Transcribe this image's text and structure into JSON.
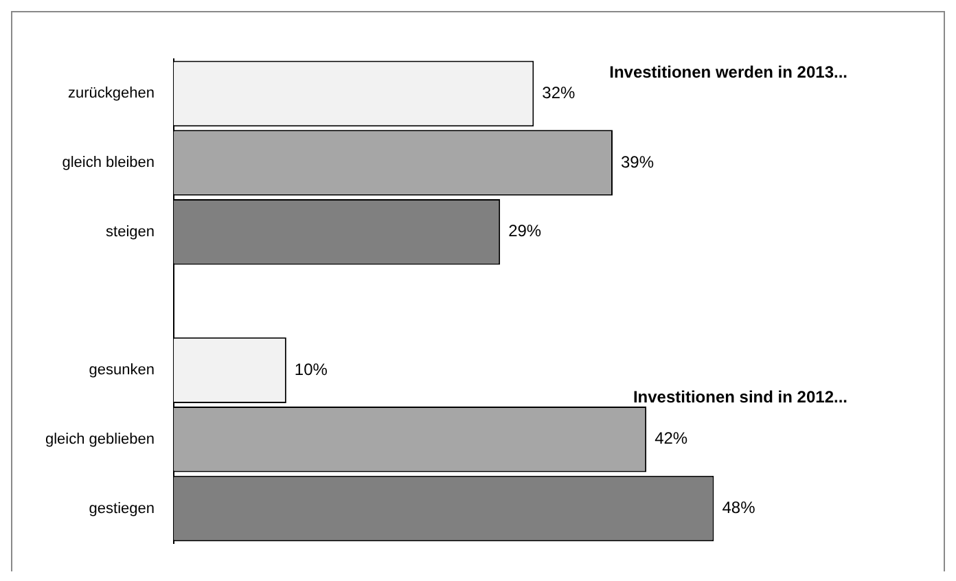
{
  "chart_data": {
    "type": "bar",
    "orientation": "horizontal",
    "categories": [
      "zurückgehen",
      "gleich bleiben",
      "steigen",
      null,
      "gesunken",
      "gleich geblieben",
      "gestiegen"
    ],
    "values": [
      32,
      39,
      29,
      null,
      10,
      42,
      48
    ],
    "colors": [
      "#f2f2f2",
      "#a6a6a6",
      "#808080",
      null,
      "#f2f2f2",
      "#a6a6a6",
      "#808080"
    ],
    "value_labels": [
      "32%",
      "39%",
      "29%",
      null,
      "10%",
      "42%",
      "48%"
    ],
    "annotations": [
      "Investitionen werden in 2013...",
      "Investitionen sind in 2012..."
    ],
    "grid": false,
    "legend": false
  }
}
